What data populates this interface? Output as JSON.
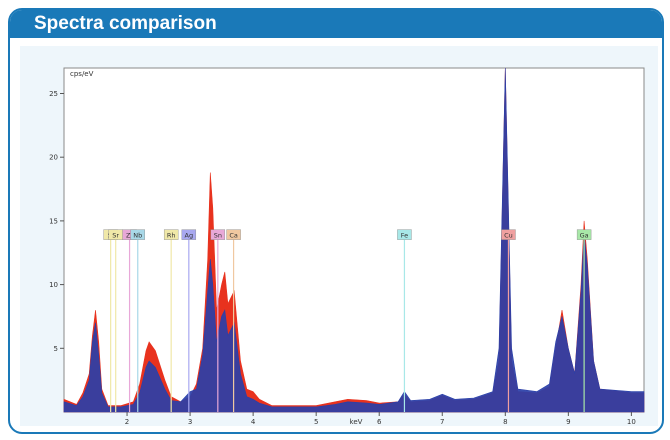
{
  "panel": {
    "title": "Spectra comparison"
  },
  "chart_data": {
    "type": "area",
    "title": "",
    "xlabel": "keV",
    "ylabel": "cps/eV",
    "xlim": [
      1.0,
      10.2
    ],
    "ylim": [
      0,
      27
    ],
    "x_ticks": [
      2,
      3,
      4,
      5,
      6,
      7,
      8,
      9,
      10
    ],
    "y_ticks": [
      5,
      10,
      15,
      20,
      25
    ],
    "grid": false,
    "colors": {
      "series_1": "#e8321e",
      "series_2": "#2a3fa8",
      "plot_bg": "#ffffff"
    },
    "series": [
      {
        "name": "",
        "points": [
          [
            1.0,
            1.0
          ],
          [
            1.2,
            0.6
          ],
          [
            1.3,
            1.5
          ],
          [
            1.4,
            3.0
          ],
          [
            1.45,
            6.0
          ],
          [
            1.5,
            8.0
          ],
          [
            1.55,
            5.5
          ],
          [
            1.6,
            1.8
          ],
          [
            1.7,
            0.5
          ],
          [
            1.9,
            0.5
          ],
          [
            2.1,
            0.8
          ],
          [
            2.2,
            2.2
          ],
          [
            2.3,
            4.8
          ],
          [
            2.35,
            5.5
          ],
          [
            2.45,
            4.8
          ],
          [
            2.6,
            2.5
          ],
          [
            2.7,
            1.2
          ],
          [
            2.85,
            0.8
          ],
          [
            3.0,
            1.2
          ],
          [
            3.1,
            2.2
          ],
          [
            3.2,
            5.0
          ],
          [
            3.28,
            12.0
          ],
          [
            3.32,
            18.8
          ],
          [
            3.36,
            16.0
          ],
          [
            3.42,
            8.0
          ],
          [
            3.5,
            10.0
          ],
          [
            3.55,
            11.0
          ],
          [
            3.6,
            8.5
          ],
          [
            3.65,
            9.0
          ],
          [
            3.7,
            9.5
          ],
          [
            3.8,
            4.0
          ],
          [
            3.9,
            1.8
          ],
          [
            4.0,
            1.6
          ],
          [
            4.1,
            1.0
          ],
          [
            4.3,
            0.5
          ],
          [
            5.0,
            0.5
          ],
          [
            5.3,
            0.8
          ],
          [
            5.5,
            1.0
          ],
          [
            5.8,
            0.9
          ],
          [
            6.0,
            0.7
          ],
          [
            6.3,
            0.8
          ],
          [
            6.4,
            1.4
          ],
          [
            6.5,
            0.8
          ],
          [
            6.8,
            0.9
          ],
          [
            7.0,
            1.3
          ],
          [
            7.2,
            0.9
          ],
          [
            7.5,
            1.0
          ],
          [
            7.8,
            1.5
          ],
          [
            7.9,
            4.0
          ],
          [
            8.0,
            27.0
          ],
          [
            8.1,
            4.0
          ],
          [
            8.2,
            1.6
          ],
          [
            8.5,
            1.5
          ],
          [
            8.7,
            2.0
          ],
          [
            8.8,
            5.0
          ],
          [
            8.9,
            8.0
          ],
          [
            9.0,
            5.0
          ],
          [
            9.1,
            3.0
          ],
          [
            9.2,
            10.0
          ],
          [
            9.25,
            15.0
          ],
          [
            9.3,
            12.0
          ],
          [
            9.4,
            4.0
          ],
          [
            9.5,
            1.8
          ],
          [
            10.0,
            1.5
          ],
          [
            10.2,
            1.5
          ]
        ]
      },
      {
        "name": "",
        "points": [
          [
            1.0,
            0.8
          ],
          [
            1.2,
            0.5
          ],
          [
            1.3,
            1.2
          ],
          [
            1.4,
            2.5
          ],
          [
            1.45,
            5.5
          ],
          [
            1.5,
            7.0
          ],
          [
            1.55,
            4.5
          ],
          [
            1.6,
            1.5
          ],
          [
            1.7,
            0.4
          ],
          [
            1.9,
            0.4
          ],
          [
            2.1,
            0.6
          ],
          [
            2.2,
            1.5
          ],
          [
            2.3,
            3.5
          ],
          [
            2.35,
            4.0
          ],
          [
            2.45,
            3.5
          ],
          [
            2.6,
            1.8
          ],
          [
            2.7,
            0.9
          ],
          [
            2.85,
            0.8
          ],
          [
            3.0,
            1.6
          ],
          [
            3.1,
            1.8
          ],
          [
            3.2,
            4.5
          ],
          [
            3.28,
            9.5
          ],
          [
            3.32,
            12.0
          ],
          [
            3.36,
            10.0
          ],
          [
            3.42,
            5.5
          ],
          [
            3.5,
            7.5
          ],
          [
            3.55,
            8.0
          ],
          [
            3.6,
            6.0
          ],
          [
            3.65,
            6.5
          ],
          [
            3.7,
            7.0
          ],
          [
            3.8,
            3.0
          ],
          [
            3.9,
            1.2
          ],
          [
            4.0,
            1.0
          ],
          [
            4.1,
            0.7
          ],
          [
            4.3,
            0.4
          ],
          [
            5.0,
            0.4
          ],
          [
            5.3,
            0.6
          ],
          [
            5.5,
            0.8
          ],
          [
            5.8,
            0.7
          ],
          [
            6.0,
            0.6
          ],
          [
            6.3,
            0.8
          ],
          [
            6.4,
            1.6
          ],
          [
            6.5,
            0.9
          ],
          [
            6.8,
            1.0
          ],
          [
            7.0,
            1.4
          ],
          [
            7.2,
            1.0
          ],
          [
            7.5,
            1.1
          ],
          [
            7.8,
            1.6
          ],
          [
            7.9,
            5.0
          ],
          [
            8.0,
            27.0
          ],
          [
            8.1,
            5.0
          ],
          [
            8.2,
            1.8
          ],
          [
            8.5,
            1.6
          ],
          [
            8.7,
            2.2
          ],
          [
            8.8,
            5.5
          ],
          [
            8.9,
            7.5
          ],
          [
            9.0,
            5.0
          ],
          [
            9.1,
            3.0
          ],
          [
            9.2,
            9.5
          ],
          [
            9.25,
            14.0
          ],
          [
            9.3,
            11.5
          ],
          [
            9.4,
            4.0
          ],
          [
            9.5,
            1.8
          ],
          [
            10.0,
            1.6
          ],
          [
            10.2,
            1.6
          ]
        ]
      }
    ],
    "element_markers": [
      {
        "label": "Si",
        "x": 1.74,
        "color": "#f0e8a8"
      },
      {
        "label": "Sr",
        "x": 1.82,
        "color": "#f0e8a8"
      },
      {
        "label": "Zr",
        "x": 2.04,
        "color": "#e8a8d8"
      },
      {
        "label": "Nb",
        "x": 2.17,
        "color": "#a8d8e8"
      },
      {
        "label": "Rh",
        "x": 2.7,
        "color": "#f0e8a8"
      },
      {
        "label": "Ag",
        "x": 2.98,
        "color": "#a8a8f0"
      },
      {
        "label": "Sn",
        "x": 3.44,
        "color": "#e8a8d8"
      },
      {
        "label": "Ca",
        "x": 3.69,
        "color": "#f0c8a0"
      },
      {
        "label": "Fe",
        "x": 6.4,
        "color": "#a8e8e8"
      },
      {
        "label": "Cu",
        "x": 8.05,
        "color": "#f0a0a0"
      },
      {
        "label": "Ga",
        "x": 9.25,
        "color": "#a8e8a8"
      }
    ]
  }
}
